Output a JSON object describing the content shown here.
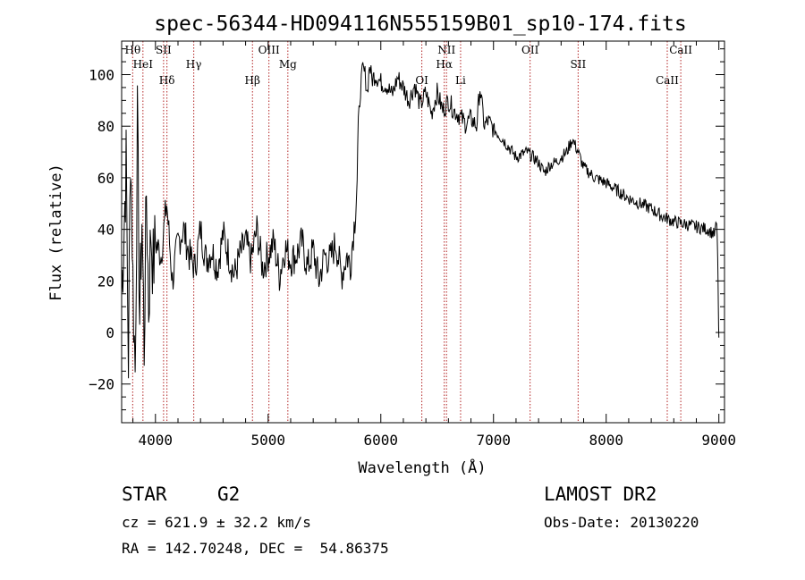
{
  "chart_data": {
    "type": "line",
    "title": "spec-56344-HD094116N555159B01_sp10-174.fits",
    "xlabel": "Wavelength (Å)",
    "ylabel": "Flux (relative)",
    "xlim": [
      3700,
      9050
    ],
    "ylim": [
      -35,
      113
    ],
    "x_ticks": [
      4000,
      5000,
      6000,
      7000,
      8000,
      9000
    ],
    "y_ticks": [
      -20,
      0,
      20,
      40,
      60,
      80,
      100
    ],
    "grid": false,
    "series": [
      {
        "x": [
          3700,
          3740,
          3760,
          3780,
          3800,
          3820,
          3840,
          3860,
          3880,
          3900,
          3920,
          3940,
          3960,
          3980,
          4000,
          4050,
          4100,
          4150,
          4200,
          4250,
          4300,
          4350,
          4400,
          4450,
          4500,
          4550,
          4600,
          4650,
          4700,
          4750,
          4800,
          4850,
          4900,
          4950,
          5000,
          5050,
          5100,
          5150,
          5200,
          5250,
          5300,
          5350,
          5400,
          5450,
          5500,
          5550,
          5600,
          5650,
          5700,
          5730,
          5750,
          5770,
          5790,
          5800,
          5820,
          5840,
          5860,
          5880,
          5900,
          5920,
          5950,
          6000,
          6050,
          6100,
          6150,
          6200,
          6250,
          6300,
          6350,
          6400,
          6450,
          6500,
          6550,
          6600,
          6650,
          6700,
          6750,
          6800,
          6850,
          6880,
          6900,
          6920,
          6950,
          7000,
          7100,
          7200,
          7300,
          7400,
          7450,
          7500,
          7550,
          7600,
          7650,
          7700,
          7750,
          7800,
          7850,
          7900,
          8000,
          8100,
          8200,
          8300,
          8400,
          8500,
          8600,
          8700,
          8800,
          8900,
          8960,
          8980,
          8990,
          8995,
          9000
        ],
        "values": [
          15,
          65,
          -10,
          75,
          20,
          -15,
          80,
          5,
          45,
          -5,
          55,
          10,
          40,
          25,
          35,
          30,
          50,
          20,
          35,
          40,
          30,
          25,
          40,
          28,
          32,
          25,
          38,
          30,
          22,
          30,
          35,
          28,
          40,
          25,
          30,
          35,
          22,
          33,
          28,
          30,
          35,
          25,
          32,
          20,
          30,
          28,
          35,
          22,
          30,
          26,
          36,
          44,
          60,
          80,
          95,
          102,
          100,
          93,
          104,
          98,
          100,
          97,
          96,
          92,
          99,
          95,
          90,
          96,
          88,
          93,
          85,
          93,
          86,
          90,
          86,
          84,
          81,
          83,
          80,
          95,
          87,
          80,
          82,
          79,
          74,
          68,
          70,
          66,
          62,
          65,
          66,
          68,
          70,
          75,
          70,
          64,
          62,
          60,
          58,
          55,
          52,
          50,
          48,
          45,
          43,
          42,
          41,
          40,
          38,
          42,
          30,
          8,
          -2
        ]
      }
    ],
    "lines": [
      {
        "label": "Hθ",
        "x": 3798
      },
      {
        "label": "HeI",
        "x": 3889
      },
      {
        "label": "Hδ",
        "x": 4102
      },
      {
        "label": "SII",
        "x": 4072
      },
      {
        "label": "Hγ",
        "x": 4340
      },
      {
        "label": "Hβ",
        "x": 4861
      },
      {
        "label": "OIII",
        "x": 5007
      },
      {
        "label": "Mg",
        "x": 5175
      },
      {
        "label": "OI",
        "x": 6364
      },
      {
        "label": "NII",
        "x": 6583
      },
      {
        "label": "Hα",
        "x": 6563
      },
      {
        "label": "Li",
        "x": 6708
      },
      {
        "label": "OII",
        "x": 7325
      },
      {
        "label": "SII",
        "x": 7751
      },
      {
        "label": "CaII",
        "x": 8542
      },
      {
        "label": "CaII",
        "x": 8662
      }
    ]
  },
  "info": {
    "class_label": "STAR",
    "subclass": "G2",
    "survey": "LAMOST DR2",
    "cz": "cz = 621.9 ± 32.2 km/s",
    "obs_date": "Obs-Date: 20130220",
    "coords": "RA = 142.70248, DEC =  54.86375"
  }
}
